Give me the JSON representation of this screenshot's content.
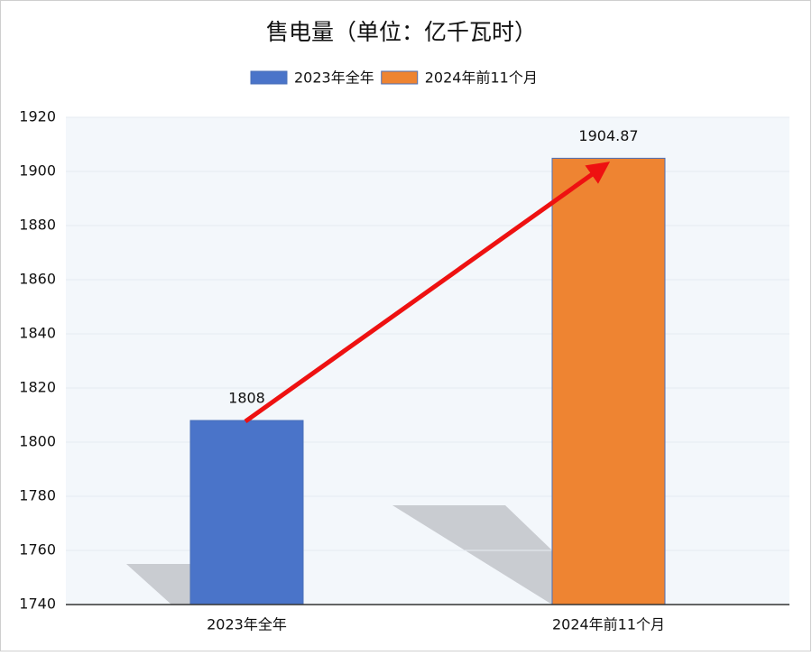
{
  "chart_data": {
    "type": "bar",
    "title": "售电量（单位：亿千瓦时）",
    "categories": [
      "2023年全年",
      "2024年前11个月"
    ],
    "series": [
      {
        "name": "2023年全年",
        "color": "#4a74c9",
        "values": [
          1808,
          null
        ]
      },
      {
        "name": "2024年前11个月",
        "color": "#ee8432",
        "values": [
          null,
          1904.87
        ]
      }
    ],
    "ylim": [
      1740,
      1920
    ],
    "yticks": [
      1740,
      1760,
      1780,
      1800,
      1820,
      1840,
      1860,
      1880,
      1900,
      1920
    ],
    "grid": true
  }
}
